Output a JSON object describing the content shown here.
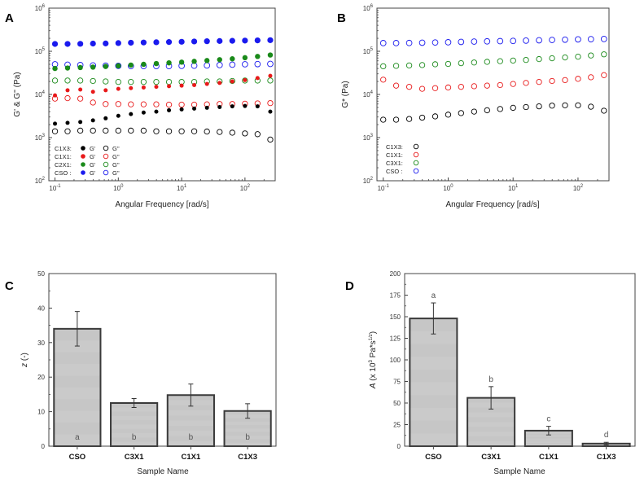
{
  "colors": {
    "c1x3": "#000000",
    "c1x1": "#e8191a",
    "c2x1": "#1a8a1a",
    "cso": "#1a1aee",
    "bar_fill": "#c6c6c6",
    "bar_stroke": "#3a3a3a"
  },
  "chart_data": [
    {
      "id": "A",
      "type": "scatter",
      "panel_label": "A",
      "xlabel": "Angular Frequency [rad/s]",
      "ylabel": "G' & G'' (Pa)",
      "xscale": "log",
      "yscale": "log",
      "xlim": [
        0.08,
        300
      ],
      "ylim": [
        100,
        1000000
      ],
      "x_ticks": [
        {
          "v": 0.1,
          "b": "10",
          "e": "-1"
        },
        {
          "v": 1,
          "b": "10",
          "e": "0"
        },
        {
          "v": 10,
          "b": "10",
          "e": "1"
        },
        {
          "v": 100,
          "b": "10",
          "e": "2"
        }
      ],
      "y_ticks": [
        {
          "v": 100,
          "b": "10",
          "e": "2"
        },
        {
          "v": 1000,
          "b": "10",
          "e": "3"
        },
        {
          "v": 10000,
          "b": "10",
          "e": "4"
        },
        {
          "v": 100000,
          "b": "10",
          "e": "5"
        },
        {
          "v": 1000000,
          "b": "10",
          "e": "6"
        }
      ],
      "x": [
        0.1,
        0.158,
        0.251,
        0.398,
        0.631,
        1,
        1.58,
        2.51,
        3.98,
        6.31,
        10,
        15.8,
        25.1,
        39.8,
        63.1,
        100,
        158,
        251
      ],
      "legend": [
        {
          "sample": "C1X3:",
          "filled": "G'",
          "open": "G''",
          "color": "c1x3"
        },
        {
          "sample": "C1X1:",
          "filled": "G'",
          "open": "G''",
          "color": "c1x1"
        },
        {
          "sample": "C2X1:",
          "filled": "G'",
          "open": "G''",
          "color": "c2x1"
        },
        {
          "sample": "CSO :",
          "filled": "G'",
          "open": "G''",
          "color": "cso"
        }
      ],
      "series": [
        {
          "name": "CSO G'",
          "color": "cso",
          "filled": true,
          "size": 3.6,
          "values": [
            148000,
            148000,
            149000,
            151000,
            152000,
            155000,
            158000,
            160000,
            162000,
            164000,
            166000,
            169000,
            171000,
            173000,
            175000,
            177000,
            179000,
            181000
          ]
        },
        {
          "name": "CSO G''",
          "color": "cso",
          "filled": false,
          "size": 3.4,
          "values": [
            50000,
            49000,
            48000,
            47000,
            46500,
            46000,
            45500,
            45500,
            45500,
            45500,
            46000,
            46500,
            47000,
            48000,
            49000,
            50000,
            50500,
            51000
          ]
        },
        {
          "name": "C2X1 G'",
          "color": "c2x1",
          "filled": true,
          "size": 3.2,
          "values": [
            40000,
            41000,
            42000,
            43000,
            44500,
            46000,
            48000,
            50000,
            52000,
            54000,
            56000,
            58500,
            61000,
            64000,
            67000,
            71000,
            76000,
            82000
          ]
        },
        {
          "name": "C2X1 G''",
          "color": "c2x1",
          "filled": false,
          "size": 3.2,
          "values": [
            21000,
            21000,
            21000,
            20500,
            20000,
            19500,
            19500,
            19500,
            19500,
            19500,
            19500,
            19500,
            20000,
            20000,
            20500,
            21000,
            21000,
            21000
          ]
        },
        {
          "name": "C1X1 G'",
          "color": "c1x1",
          "filled": true,
          "size": 2.5,
          "values": [
            9500,
            12500,
            13000,
            11500,
            12500,
            13500,
            14000,
            14500,
            15000,
            15500,
            16000,
            16500,
            17500,
            18500,
            20000,
            21500,
            24000,
            27000
          ]
        },
        {
          "name": "C1X1 G''",
          "color": "c1x1",
          "filled": false,
          "size": 3.2,
          "values": [
            8000,
            8200,
            8000,
            6500,
            6000,
            6000,
            5900,
            5900,
            5900,
            5800,
            5800,
            5800,
            5900,
            6000,
            6000,
            6100,
            6200,
            6300
          ]
        },
        {
          "name": "C1X3 G'",
          "color": "c1x3",
          "filled": true,
          "size": 2.5,
          "values": [
            2100,
            2200,
            2300,
            2500,
            2800,
            3200,
            3500,
            3800,
            4000,
            4300,
            4500,
            4700,
            4900,
            5100,
            5300,
            5400,
            5300,
            4000
          ]
        },
        {
          "name": "C1X3 G''",
          "color": "c1x3",
          "filled": false,
          "size": 3.2,
          "values": [
            1400,
            1400,
            1450,
            1450,
            1450,
            1450,
            1450,
            1450,
            1400,
            1400,
            1400,
            1400,
            1380,
            1350,
            1300,
            1250,
            1200,
            900
          ]
        }
      ]
    },
    {
      "id": "B",
      "type": "scatter",
      "panel_label": "B",
      "xlabel": "Angular Frequency [rad/s]",
      "ylabel": "G* (Pa)",
      "xscale": "log",
      "yscale": "log",
      "xlim": [
        0.08,
        300
      ],
      "ylim": [
        100,
        1000000
      ],
      "x_ticks": [
        {
          "v": 0.1,
          "b": "10",
          "e": "-1"
        },
        {
          "v": 1,
          "b": "10",
          "e": "0"
        },
        {
          "v": 10,
          "b": "10",
          "e": "1"
        },
        {
          "v": 100,
          "b": "10",
          "e": "2"
        }
      ],
      "y_ticks": [
        {
          "v": 100,
          "b": "10",
          "e": "2"
        },
        {
          "v": 1000,
          "b": "10",
          "e": "3"
        },
        {
          "v": 10000,
          "b": "10",
          "e": "4"
        },
        {
          "v": 100000,
          "b": "10",
          "e": "5"
        },
        {
          "v": 1000000,
          "b": "10",
          "e": "6"
        }
      ],
      "x": [
        0.1,
        0.158,
        0.251,
        0.398,
        0.631,
        1,
        1.58,
        2.51,
        3.98,
        6.31,
        10,
        15.8,
        25.1,
        39.8,
        63.1,
        100,
        158,
        251
      ],
      "legend": [
        {
          "sample": "C1X3:",
          "color": "c1x3"
        },
        {
          "sample": "C1X1:",
          "color": "c1x1"
        },
        {
          "sample": "C3X1:",
          "color": "c2x1"
        },
        {
          "sample": "CSO :",
          "color": "cso"
        }
      ],
      "series": [
        {
          "name": "CSO G*",
          "color": "cso",
          "filled": false,
          "size": 3.4,
          "values": [
            155000,
            155000,
            156000,
            158000,
            160000,
            162000,
            165000,
            168000,
            170000,
            172000,
            174000,
            177000,
            180000,
            183000,
            186000,
            189000,
            191000,
            193000
          ]
        },
        {
          "name": "C3X1 G*",
          "color": "c2x1",
          "filled": false,
          "size": 3.2,
          "values": [
            45000,
            46000,
            47000,
            48000,
            50000,
            51000,
            53000,
            55000,
            57000,
            59000,
            61000,
            63000,
            66000,
            69000,
            72000,
            75000,
            80000,
            85000
          ]
        },
        {
          "name": "C1X1 G*",
          "color": "c1x1",
          "filled": false,
          "size": 3.2,
          "values": [
            22000,
            16000,
            15000,
            13500,
            14000,
            14500,
            15000,
            15500,
            16000,
            16500,
            17500,
            18500,
            19500,
            20500,
            21500,
            23000,
            25000,
            28000
          ]
        },
        {
          "name": "C1X3 G*",
          "color": "c1x3",
          "filled": false,
          "size": 3.2,
          "values": [
            2600,
            2600,
            2700,
            2900,
            3100,
            3400,
            3700,
            4000,
            4300,
            4600,
            4900,
            5100,
            5300,
            5500,
            5600,
            5600,
            5200,
            4200
          ]
        }
      ]
    },
    {
      "id": "C",
      "type": "bar",
      "panel_label": "C",
      "categories": [
        "CSO",
        "C3X1",
        "C1X1",
        "C1X3"
      ],
      "values": [
        34,
        12.5,
        14.8,
        10.2
      ],
      "errors": [
        5,
        1.3,
        3.2,
        2.1
      ],
      "letters": [
        "a",
        "b",
        "b",
        "b"
      ],
      "xlabel": "Sample Name",
      "ylabel": "z (-)",
      "ylim": [
        0,
        50
      ],
      "y_ticks": [
        "0",
        "10",
        "20",
        "30",
        "40",
        "50"
      ]
    },
    {
      "id": "D",
      "type": "bar",
      "panel_label": "D",
      "categories": [
        "CSO",
        "C3X1",
        "C1X1",
        "C1X3"
      ],
      "values": [
        148,
        56,
        18,
        3
      ],
      "errors": [
        18,
        13,
        5,
        1.5
      ],
      "letters": [
        "a",
        "b",
        "c",
        "d"
      ],
      "xlabel": "Sample Name",
      "ylabel": "A (x 10^3 Pa*s^1/z)",
      "ylim": [
        0,
        200
      ],
      "y_ticks": [
        "0",
        "25",
        "50",
        "75",
        "100",
        "125",
        "150",
        "175",
        "200"
      ]
    }
  ]
}
